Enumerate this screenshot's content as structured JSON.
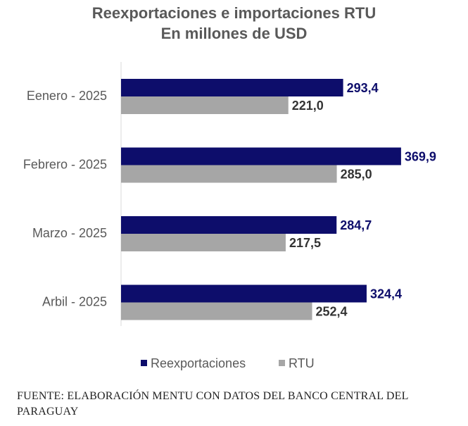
{
  "chart_data": {
    "type": "bar",
    "orientation": "horizontal",
    "title": "Reexportaciones e importaciones RTU",
    "subtitle": "En millones de USD",
    "categories": [
      "Eenero - 2025",
      "Febrero - 2025",
      "Marzo - 2025",
      "Arbil - 2025"
    ],
    "series": [
      {
        "name": "Reexportaciones",
        "color": "#0d0d6b",
        "values": [
          293.4,
          369.9,
          284.7,
          324.4
        ],
        "labels": [
          "293,4",
          "369,9",
          "284,7",
          "324,4"
        ]
      },
      {
        "name": "RTU",
        "color": "#a6a6a6",
        "values": [
          221.0,
          285.0,
          217.5,
          252.4
        ],
        "labels": [
          "221,0",
          "285,0",
          "217,5",
          "252,4"
        ]
      }
    ],
    "xlim": [
      0,
      370
    ],
    "grid": false,
    "legend": "bottom"
  },
  "source": "FUENTE: ELABORACIÓN MENTU CON DATOS DEL BANCO CENTRAL DEL PARAGUAY"
}
